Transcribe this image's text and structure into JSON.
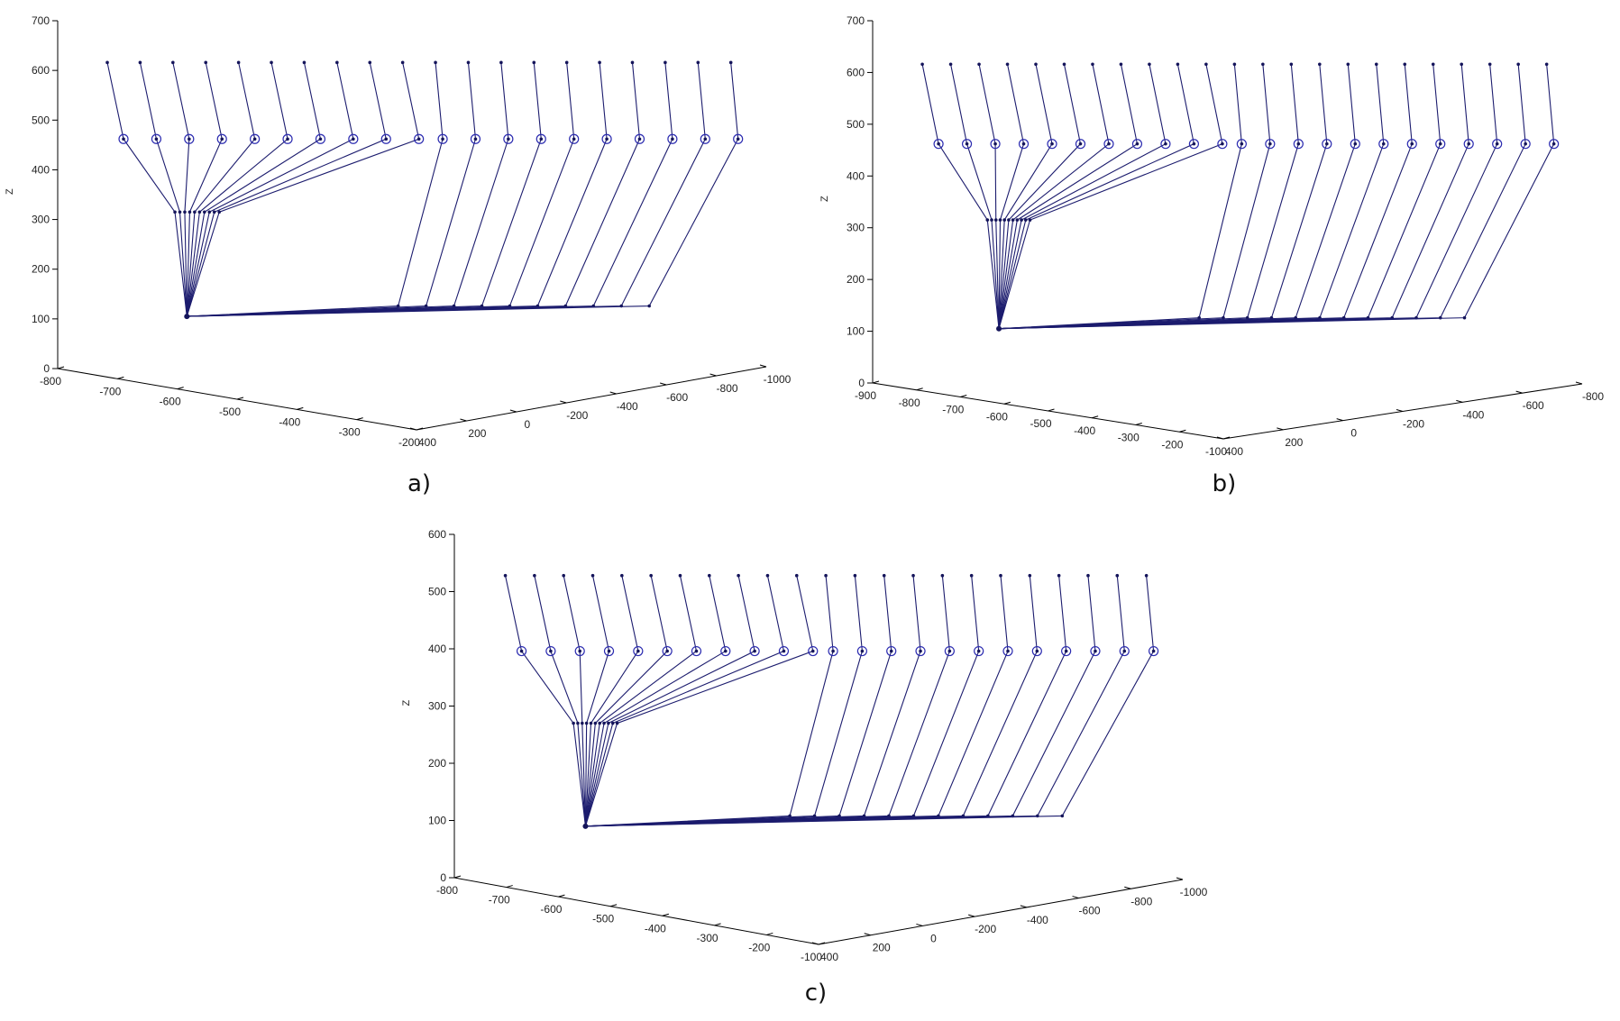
{
  "figure": {
    "panels": [
      {
        "id": "a",
        "label": "a)",
        "zlabel": "Z",
        "zticks": [
          "0",
          "100",
          "200",
          "300",
          "400",
          "500",
          "600",
          "700"
        ],
        "left_axis_ticks": [
          "-800",
          "-700",
          "-600",
          "-500",
          "-400",
          "-300",
          "-200"
        ],
        "right_axis_ticks": [
          "400",
          "200",
          "0",
          "-200",
          "-400",
          "-600",
          "-800",
          "-1000"
        ]
      },
      {
        "id": "b",
        "label": "b)",
        "zlabel": "Z",
        "zticks": [
          "0",
          "100",
          "200",
          "300",
          "400",
          "500",
          "600",
          "700"
        ],
        "left_axis_ticks": [
          "-900",
          "-800",
          "-700",
          "-600",
          "-500",
          "-400",
          "-300",
          "-200",
          "-100"
        ],
        "right_axis_ticks": [
          "400",
          "200",
          "0",
          "-200",
          "-400",
          "-600",
          "-800"
        ]
      },
      {
        "id": "c",
        "label": "c)",
        "zlabel": "Z",
        "zticks": [
          "0",
          "100",
          "200",
          "300",
          "400",
          "500",
          "600"
        ],
        "left_axis_ticks": [
          "-800",
          "-700",
          "-600",
          "-500",
          "-400",
          "-300",
          "-200",
          "-100"
        ],
        "right_axis_ticks": [
          "400",
          "200",
          "0",
          "-200",
          "-400",
          "-600",
          "-800",
          "-1000"
        ]
      }
    ]
  },
  "chart_data": [
    {
      "type": "line",
      "title": "a)",
      "description": "3D plot of leg/skeleton pose sequence (hip-knee-ankle-foot chains) fanning from a common pelvis point",
      "xlabel": "",
      "ylabel": "",
      "zlabel": "Z",
      "zlim": [
        0,
        700
      ],
      "xlim": [
        -800,
        -200
      ],
      "ylim": [
        400,
        -1000
      ],
      "grid": false,
      "color": "#1c1c6e",
      "marker_knee": "circle-dot",
      "n_chains": 20
    },
    {
      "type": "line",
      "title": "b)",
      "description": "3D plot of leg/skeleton pose sequence (hip-knee-ankle-foot chains) fanning from a common pelvis point",
      "xlabel": "",
      "ylabel": "",
      "zlabel": "Z",
      "zlim": [
        0,
        700
      ],
      "xlim": [
        -900,
        -100
      ],
      "ylim": [
        400,
        -800
      ],
      "grid": false,
      "color": "#1c1c6e",
      "marker_knee": "circle-dot",
      "n_chains": 23
    },
    {
      "type": "line",
      "title": "c)",
      "description": "3D plot of leg/skeleton pose sequence (hip-knee-ankle-foot chains) fanning from a common pelvis point",
      "xlabel": "",
      "ylabel": "",
      "zlabel": "Z",
      "zlim": [
        0,
        600
      ],
      "xlim": [
        -800,
        -100
      ],
      "ylim": [
        400,
        -1000
      ],
      "grid": false,
      "color": "#1c1c6e",
      "marker_knee": "circle-dot",
      "n_chains": 23
    }
  ]
}
